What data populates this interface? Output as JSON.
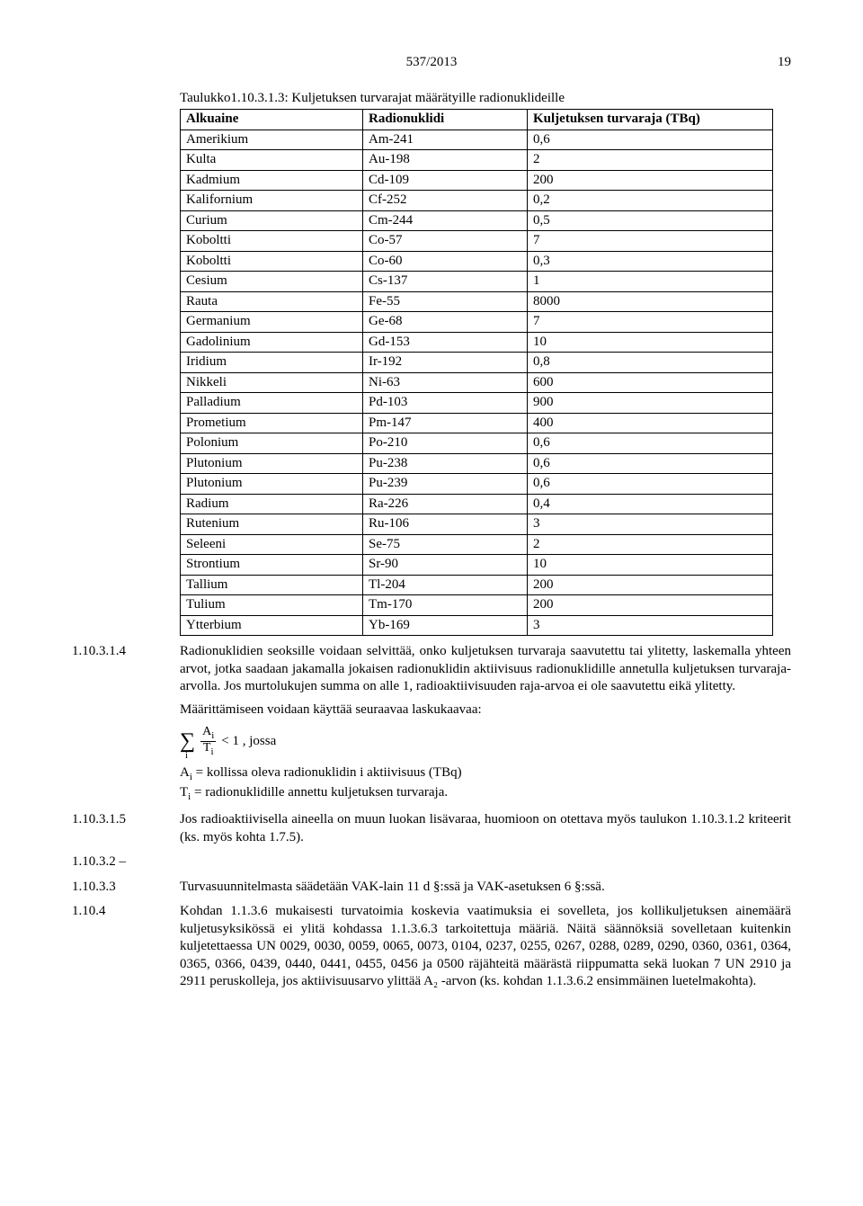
{
  "header": {
    "doc_id": "537/2013",
    "page": "19"
  },
  "table": {
    "title": "Taulukko1.10.3.1.3: Kuljetuksen turvarajat määrätyille radionuklideille",
    "columns": [
      "Alkuaine",
      "Radionuklidi",
      "Kuljetuksen turvaraja (TBq)"
    ],
    "rows": [
      [
        "Amerikium",
        "Am-241",
        "0,6"
      ],
      [
        "Kulta",
        "Au-198",
        "2"
      ],
      [
        "Kadmium",
        "Cd-109",
        "200"
      ],
      [
        "Kalifornium",
        "Cf-252",
        "0,2"
      ],
      [
        "Curium",
        "Cm-244",
        "0,5"
      ],
      [
        "Koboltti",
        "Co-57",
        "7"
      ],
      [
        "Koboltti",
        "Co-60",
        "0,3"
      ],
      [
        "Cesium",
        "Cs-137",
        "1"
      ],
      [
        "Rauta",
        "Fe-55",
        "8000"
      ],
      [
        "Germanium",
        "Ge-68",
        "7"
      ],
      [
        "Gadolinium",
        "Gd-153",
        "10"
      ],
      [
        "Iridium",
        "Ir-192",
        "0,8"
      ],
      [
        "Nikkeli",
        "Ni-63",
        "600"
      ],
      [
        "Palladium",
        "Pd-103",
        "900"
      ],
      [
        "Prometium",
        "Pm-147",
        "400"
      ],
      [
        "Polonium",
        "Po-210",
        "0,6"
      ],
      [
        "Plutonium",
        "Pu-238",
        "0,6"
      ],
      [
        "Plutonium",
        "Pu-239",
        "0,6"
      ],
      [
        "Radium",
        "Ra-226",
        "0,4"
      ],
      [
        "Rutenium",
        "Ru-106",
        "3"
      ],
      [
        "Seleeni",
        "Se-75",
        "2"
      ],
      [
        "Strontium",
        "Sr-90",
        "10"
      ],
      [
        "Tallium",
        "Tl-204",
        "200"
      ],
      [
        "Tulium",
        "Tm-170",
        "200"
      ],
      [
        "Ytterbium",
        "Yb-169",
        "3"
      ]
    ]
  },
  "entries": [
    {
      "id": "1.10.3.1.4",
      "body_html": "Radionuklidien seoksille voidaan selvittää, onko kuljetuksen turvaraja saavutettu tai ylitetty, laskemalla yhteen arvot, jotka saadaan jakamalla jokaisen radionuklidin aktiivisuus radionuklidille annetulla kuljetuksen turvaraja-arvolla. Jos murtolukujen summa on alle 1, radioaktiivisuuden raja-arvoa ei ole saavutettu eikä ylitetty.",
      "extra_line": "Määrittämiseen voidaan käyttää seuraavaa laskukaavaa:",
      "formula_tail": "< 1 , jossa",
      "def1": "Aᵢ = kollissa oleva radionuklidin i aktiivisuus (TBq)",
      "def2": "Tᵢ = radionuklidille annettu kuljetuksen turvaraja."
    },
    {
      "id": "1.10.3.1.5",
      "body_html": "Jos radioaktiivisella aineella on muun luokan lisävaraa, huomioon on otettava myös taulukon 1.10.3.1.2 kriteerit (ks. myös kohta 1.7.5)."
    },
    {
      "id": "1.10.3.2 –",
      "body_html": ""
    },
    {
      "id": "1.10.3.3",
      "body_html": "Turvasuunnitelmasta säädetään VAK-lain 11 d §:ssä ja VAK-asetuksen 6 §:ssä."
    },
    {
      "id": "1.10.4",
      "body_html": "Kohdan 1.1.3.6 mukaisesti turvatoimia koskevia vaatimuksia ei sovelleta, jos kollikuljetuksen ainemäärä kuljetusyksikössä ei ylitä kohdassa 1.1.3.6.3 tarkoitettuja määriä. Näitä säännöksiä sovelletaan kuitenkin kuljetettaessa UN 0029, 0030, 0059, 0065, 0073, 0104, 0237, 0255, 0267, 0288, 0289, 0290, 0360, 0361, 0364, 0365, 0366, 0439, 0440, 0441, 0455, 0456 ja 0500 räjähteitä määrästä riippumatta sekä luokan 7 UN 2910 ja 2911 peruskolleja, jos aktiivisuusarvo ylittää A₂ -arvon (ks. kohdan 1.1.3.6.2 ensimmäinen luetelmakohta)."
    }
  ]
}
